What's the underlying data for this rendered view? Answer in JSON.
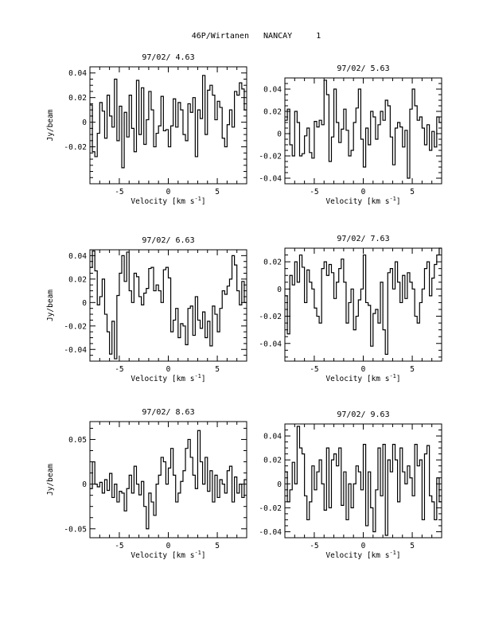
{
  "figure": {
    "title": "46P/Wirtanen   NANCAY     1"
  },
  "chart_data": [
    {
      "type": "line",
      "title": "97/02/ 4.63",
      "xlabel": "Velocity [km s",
      "xlabel_exp": "-1",
      "xlabel_end": "]",
      "ylabel": "Jy/beam",
      "xlim": [
        -8,
        8
      ],
      "ylim": [
        -0.05,
        0.045
      ],
      "xticks": [
        -5,
        0,
        5
      ],
      "xtick_labels": [
        "-5",
        "0",
        "5"
      ],
      "yticks": [
        -0.02,
        0,
        0.02,
        0.04
      ],
      "ytick_labels": [
        "-0.02",
        "0",
        "0.02",
        "0.04"
      ],
      "series": [
        {
          "step": 0.25,
          "x_start": -8,
          "values": [
            0.014,
            -0.024,
            -0.028,
            -0.009,
            0.016,
            0.009,
            -0.013,
            0.022,
            0.005,
            -0.004,
            0.035,
            -0.015,
            0.013,
            -0.037,
            0.008,
            -0.012,
            0.022,
            -0.005,
            -0.024,
            0.034,
            -0.01,
            0.028,
            -0.018,
            0.002,
            0.025,
            0.01,
            -0.02,
            -0.009,
            -0.003,
            0.021,
            -0.007,
            -0.006,
            -0.02,
            -0.003,
            0.019,
            -0.004,
            0.016,
            0.01,
            -0.01,
            -0.015,
            0.015,
            0.008,
            0.02,
            -0.028,
            0.01,
            0.003,
            0.038,
            -0.01,
            0.026,
            0.03,
            0.022,
            0.002,
            0.017,
            0.012,
            -0.013,
            -0.02,
            -0.002,
            0.01,
            -0.004,
            0.025,
            0.022,
            0.032,
            0.027,
            0.01
          ]
        }
      ]
    },
    {
      "type": "line",
      "title": "97/02/ 5.63",
      "xlabel": "Velocity [km s",
      "xlabel_exp": "-1",
      "xlabel_end": "]",
      "ylabel": "",
      "xlim": [
        -8,
        8
      ],
      "ylim": [
        -0.045,
        0.05
      ],
      "xticks": [
        -5,
        0,
        5
      ],
      "xtick_labels": [
        "-5",
        "0",
        "5"
      ],
      "yticks": [
        -0.04,
        -0.02,
        0,
        0.02,
        0.04
      ],
      "ytick_labels": [
        "-0.04",
        "-0.02",
        "0",
        "0.02",
        "0.04"
      ],
      "series": [
        {
          "step": 0.25,
          "x_start": -8,
          "values": [
            0.012,
            0.022,
            -0.01,
            -0.02,
            0.02,
            0.01,
            -0.02,
            -0.018,
            -0.002,
            0.005,
            -0.017,
            -0.022,
            0.011,
            0.006,
            0.012,
            0.008,
            0.048,
            0.035,
            -0.025,
            -0.003,
            0.04,
            0.01,
            -0.008,
            0.004,
            0.022,
            0.003,
            -0.02,
            -0.015,
            0.01,
            0.023,
            0.04,
            -0.005,
            -0.03,
            0.005,
            -0.01,
            0.02,
            0.015,
            -0.005,
            0.008,
            0.02,
            0.012,
            0.03,
            0.025,
            -0.003,
            -0.028,
            0.005,
            0.01,
            0.006,
            -0.012,
            0.003,
            -0.04,
            0.022,
            0.04,
            0.025,
            0.012,
            0.015,
            0.005,
            -0.01,
            0.008,
            -0.015,
            0.002,
            -0.012,
            0.015,
            0.01
          ]
        }
      ]
    },
    {
      "type": "line",
      "title": "97/02/ 6.63",
      "xlabel": "Velocity [km s",
      "xlabel_exp": "-1",
      "xlabel_end": "]",
      "ylabel": "Jy/beam",
      "xlim": [
        -8,
        8
      ],
      "ylim": [
        -0.05,
        0.045
      ],
      "xticks": [
        -5,
        0,
        5
      ],
      "xtick_labels": [
        "-5",
        "0",
        "5"
      ],
      "yticks": [
        -0.04,
        -0.02,
        0,
        0.02,
        0.04
      ],
      "ytick_labels": [
        "-0.04",
        "-0.02",
        "0",
        "0.02",
        "0.04"
      ],
      "series": [
        {
          "step": 0.25,
          "x_start": -8,
          "values": [
            0.03,
            0.044,
            0.027,
            -0.002,
            0.005,
            0.02,
            -0.01,
            -0.025,
            -0.044,
            -0.016,
            -0.048,
            0.006,
            0.025,
            0.04,
            0.018,
            0.043,
            0.01,
            0.0,
            0.025,
            0.022,
            0.005,
            -0.002,
            0.008,
            0.012,
            0.029,
            0.03,
            0.01,
            0.015,
            0.01,
            0.0,
            0.028,
            0.03,
            0.021,
            -0.025,
            -0.015,
            -0.005,
            -0.03,
            -0.018,
            -0.02,
            -0.036,
            -0.005,
            -0.003,
            -0.028,
            0.005,
            -0.015,
            -0.022,
            -0.008,
            -0.03,
            -0.016,
            -0.037,
            -0.003,
            -0.01,
            -0.025,
            -0.005,
            0.01,
            0.007,
            0.014,
            0.02,
            0.04,
            0.032,
            0.01,
            -0.002,
            0.018,
            0.0
          ]
        }
      ]
    },
    {
      "type": "line",
      "title": "97/02/ 7.63",
      "xlabel": "Velocity [km s",
      "xlabel_exp": "-1",
      "xlabel_end": "]",
      "ylabel": "",
      "xlim": [
        -8,
        8
      ],
      "ylim": [
        -0.053,
        0.03
      ],
      "xticks": [
        -5,
        0,
        5
      ],
      "xtick_labels": [
        "-5",
        "0",
        "5"
      ],
      "yticks": [
        -0.04,
        -0.02,
        0,
        0.02
      ],
      "ytick_labels": [
        "-0.04",
        "-0.02",
        "0",
        "0.02"
      ],
      "series": [
        {
          "step": 0.25,
          "x_start": -8,
          "values": [
            -0.005,
            -0.033,
            0.01,
            0.003,
            0.02,
            0.005,
            0.025,
            0.016,
            -0.01,
            0.014,
            0.005,
            0.0,
            -0.014,
            -0.02,
            -0.025,
            0.015,
            0.02,
            0.01,
            0.018,
            0.012,
            -0.007,
            0.005,
            0.015,
            0.022,
            0.005,
            -0.025,
            -0.01,
            0.0,
            -0.03,
            -0.02,
            -0.008,
            0.0,
            0.025,
            -0.01,
            -0.012,
            -0.042,
            -0.018,
            -0.015,
            -0.025,
            0.005,
            -0.03,
            -0.048,
            0.012,
            0.015,
            0.0,
            0.02,
            0.005,
            -0.01,
            0.01,
            -0.007,
            0.012,
            0.005,
            0.0,
            -0.02,
            -0.025,
            -0.01,
            0.0,
            0.015,
            0.02,
            -0.005,
            0.008,
            0.018,
            0.025,
            0.03
          ]
        }
      ]
    },
    {
      "type": "line",
      "title": "97/02/ 8.63",
      "xlabel": "Velocity [km s",
      "xlabel_exp": "-1",
      "xlabel_end": "]",
      "ylabel": "Jy/beam",
      "xlim": [
        -8,
        8
      ],
      "ylim": [
        -0.06,
        0.07
      ],
      "xticks": [
        -5,
        0,
        5
      ],
      "xtick_labels": [
        "-5",
        "0",
        "5"
      ],
      "yticks": [
        -0.05,
        0,
        0.05
      ],
      "ytick_labels": [
        "-0.05",
        "0",
        "0.05"
      ],
      "series": [
        {
          "step": 0.25,
          "x_start": -8,
          "values": [
            -0.005,
            0.025,
            0.0,
            -0.003,
            0.002,
            -0.01,
            0.005,
            -0.007,
            0.012,
            -0.015,
            0.0,
            -0.02,
            -0.008,
            -0.01,
            -0.03,
            -0.005,
            0.01,
            -0.01,
            0.02,
            0.0,
            -0.012,
            0.003,
            -0.025,
            -0.05,
            -0.01,
            -0.02,
            -0.035,
            0.0,
            0.01,
            0.03,
            0.025,
            0.0,
            0.018,
            0.04,
            0.01,
            -0.02,
            -0.01,
            0.003,
            0.015,
            0.04,
            0.05,
            0.03,
            0.01,
            -0.005,
            0.06,
            0.025,
            0.0,
            0.03,
            -0.008,
            0.015,
            -0.02,
            0.01,
            -0.015,
            0.005,
            0.0,
            -0.01,
            0.015,
            0.02,
            -0.02,
            0.008,
            -0.01,
            0.0,
            -0.015,
            0.005
          ]
        }
      ]
    },
    {
      "type": "line",
      "title": "97/02/ 9.63",
      "xlabel": "Velocity [km s",
      "xlabel_exp": "-1",
      "xlabel_end": "]",
      "ylabel": "",
      "xlim": [
        -8,
        8
      ],
      "ylim": [
        -0.045,
        0.05
      ],
      "xticks": [
        -5,
        0,
        5
      ],
      "xtick_labels": [
        "-5",
        "0",
        "5"
      ],
      "yticks": [
        -0.04,
        -0.02,
        0,
        0.02,
        0.04
      ],
      "ytick_labels": [
        "-0.04",
        "-0.02",
        "0",
        "0.02",
        "0.04"
      ],
      "series": [
        {
          "step": 0.25,
          "x_start": -8,
          "values": [
            0.01,
            -0.015,
            -0.005,
            0.018,
            0.0,
            0.048,
            0.03,
            0.025,
            -0.01,
            -0.03,
            -0.015,
            0.015,
            -0.005,
            0.01,
            0.02,
            0.0,
            -0.022,
            0.03,
            -0.02,
            0.02,
            0.025,
            0.015,
            0.03,
            -0.018,
            0.01,
            -0.03,
            0.0,
            -0.02,
            0.0,
            0.015,
            0.01,
            -0.005,
            0.033,
            -0.035,
            0.01,
            -0.02,
            -0.04,
            -0.005,
            0.03,
            -0.01,
            0.033,
            -0.043,
            0.02,
            0.01,
            0.033,
            0.02,
            -0.015,
            0.03,
            0.01,
            0.0,
            0.015,
            0.005,
            -0.01,
            0.033,
            0.015,
            0.02,
            -0.03,
            0.025,
            0.032,
            -0.01,
            -0.015,
            -0.03,
            0.005,
            -0.015
          ]
        }
      ]
    }
  ]
}
